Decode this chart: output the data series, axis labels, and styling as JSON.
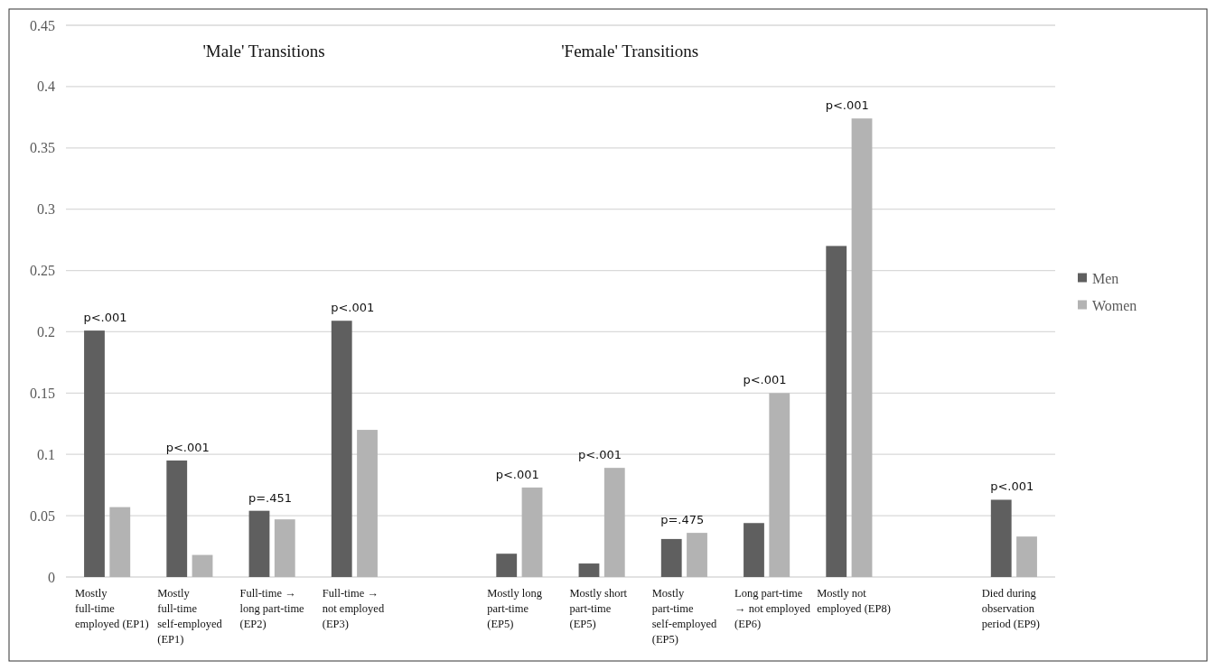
{
  "chart_data": {
    "type": "bar",
    "categories": [
      "Mostly full-time employed (EP1)",
      "Mostly full-time self-employed (EP1)",
      "Full-time → long part-time (EP2)",
      "Full-time → not employed (EP3)",
      null,
      "Mostly long part-time (EP5)",
      "Mostly short part-time (EP5)",
      "Mostly part-time self-employed (EP5)",
      "Long part-time → not employed (EP6)",
      "Mostly not employed (EP8)",
      null,
      "Died during observation period (EP9)"
    ],
    "series": [
      {
        "name": "Men",
        "color": "#5f5f5f",
        "values": [
          0.201,
          0.095,
          0.054,
          0.209,
          null,
          0.019,
          0.011,
          0.031,
          0.044,
          0.27,
          null,
          0.063
        ]
      },
      {
        "name": "Women",
        "color": "#b3b3b3",
        "values": [
          0.057,
          0.018,
          0.047,
          0.12,
          null,
          0.073,
          0.089,
          0.036,
          0.15,
          0.374,
          null,
          0.033
        ]
      }
    ],
    "ylim": [
      0,
      0.45
    ],
    "yticks": [
      0,
      0.05,
      0.1,
      0.15,
      0.2,
      0.25,
      0.3,
      0.35,
      0.4,
      0.45
    ],
    "grid": "y",
    "legend": "right",
    "annotations": [
      "'Male' Transitions",
      "'Female' Transitions",
      {
        "text": "p<.001",
        "x": "Mostly full-time employed (EP1)",
        "y": 0.201
      },
      {
        "text": "p<.001",
        "x": "Mostly full-time self-employed (EP1)",
        "y": 0.095
      },
      {
        "text": "p=.451",
        "x": "Full-time → long part-time (EP2)",
        "y": 0.054
      },
      {
        "text": "p<.001",
        "x": "Full-time → not employed (EP3)",
        "y": 0.209
      },
      {
        "text": "p<.001",
        "x": "Mostly long part-time (EP5)",
        "y": 0.073
      },
      {
        "text": "p<.001",
        "x": "Mostly short part-time (EP5)",
        "y": 0.089
      },
      {
        "text": "p=.475",
        "x": "Mostly part-time self-employed (EP5)",
        "y": 0.036
      },
      {
        "text": "p<.001",
        "x": "Long part-time → not employed (EP6)",
        "y": 0.15
      },
      {
        "text": "p<.001",
        "x": "Mostly not employed (EP8)",
        "y": 0.374
      },
      {
        "text": "p<.001",
        "x": "Died during observation period (EP9)",
        "y": 0.063
      }
    ]
  }
}
